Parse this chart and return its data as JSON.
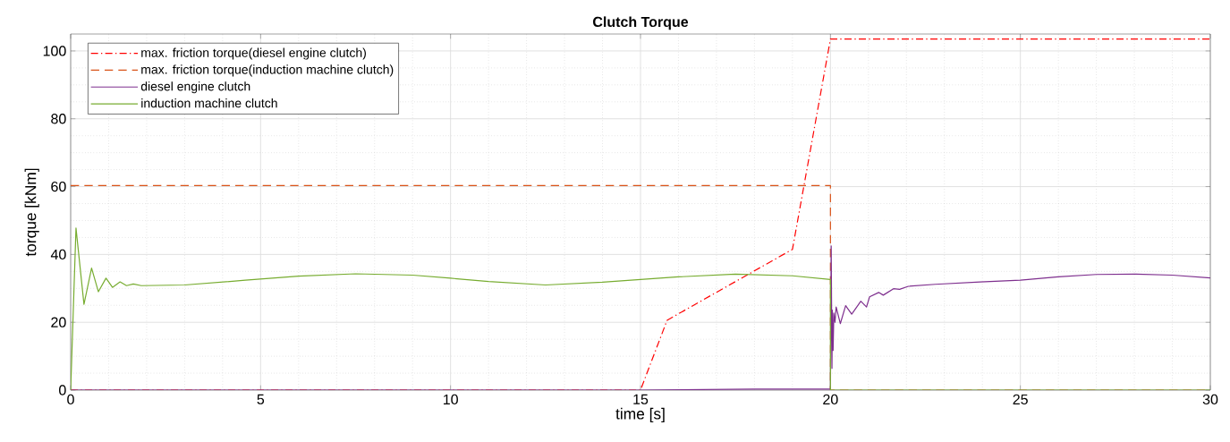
{
  "chart_data": {
    "type": "line",
    "title": "Clutch Torque",
    "xlabel": "time [s]",
    "ylabel": "torque [kNm]",
    "xlim": [
      0,
      30
    ],
    "ylim": [
      0,
      105
    ],
    "xticks": [
      0,
      5,
      10,
      15,
      20,
      25,
      30
    ],
    "yticks": [
      0,
      20,
      40,
      60,
      80,
      100
    ],
    "grid": true,
    "legend": "top left",
    "marker": "none",
    "series": [
      {
        "name": "max. friction torque(diesel engine clutch)",
        "color": "#ff0000",
        "line_style": "dashdot",
        "x": [
          0,
          15,
          15.7,
          19,
          20,
          30
        ],
        "values": [
          0,
          0,
          20.6,
          41.5,
          103.5,
          103.5
        ]
      },
      {
        "name": "max. friction torque(induction machine clutch)",
        "color": "#d95319",
        "line_style": "dashed",
        "x": [
          0,
          20,
          20,
          30
        ],
        "values": [
          60.3,
          60.3,
          0,
          0
        ]
      },
      {
        "name": "diesel engine clutch",
        "color": "#7e2f8e",
        "line_style": "solid",
        "x": [
          0,
          15,
          18,
          20,
          20.02,
          20.04,
          20.05,
          20.07,
          20.09,
          20.12,
          20.15,
          20.26,
          20.4,
          20.56,
          20.8,
          20.95,
          21.03,
          21.27,
          21.39,
          21.66,
          21.82,
          22.05,
          22.76,
          23.94,
          25,
          26,
          27,
          28,
          29,
          30
        ],
        "values": [
          0,
          0,
          0.3,
          0.3,
          42.5,
          6.4,
          23.6,
          11.7,
          22.7,
          20,
          24.5,
          19.6,
          24.9,
          22.4,
          26.2,
          24.5,
          27.5,
          28.8,
          28,
          29.9,
          29.7,
          30.6,
          31.2,
          31.9,
          32.4,
          33.4,
          34.1,
          34.2,
          33.9,
          33.1
        ]
      },
      {
        "name": "induction machine clutch",
        "color": "#77ac30",
        "line_style": "solid",
        "x": [
          0,
          0.14,
          0.35,
          0.55,
          0.73,
          0.93,
          1.1,
          1.3,
          1.47,
          1.65,
          1.86,
          3,
          4.6,
          6,
          7.5,
          9,
          10,
          11,
          12.5,
          14,
          15,
          16,
          17.5,
          19,
          20,
          20,
          30
        ],
        "values": [
          0,
          47.8,
          25.3,
          36,
          29,
          33,
          30.3,
          31.9,
          30.8,
          31.3,
          30.8,
          31,
          32.4,
          33.6,
          34.3,
          33.9,
          33,
          32,
          31,
          31.8,
          32.6,
          33.4,
          34.2,
          33.7,
          32.6,
          0,
          0
        ]
      }
    ]
  }
}
